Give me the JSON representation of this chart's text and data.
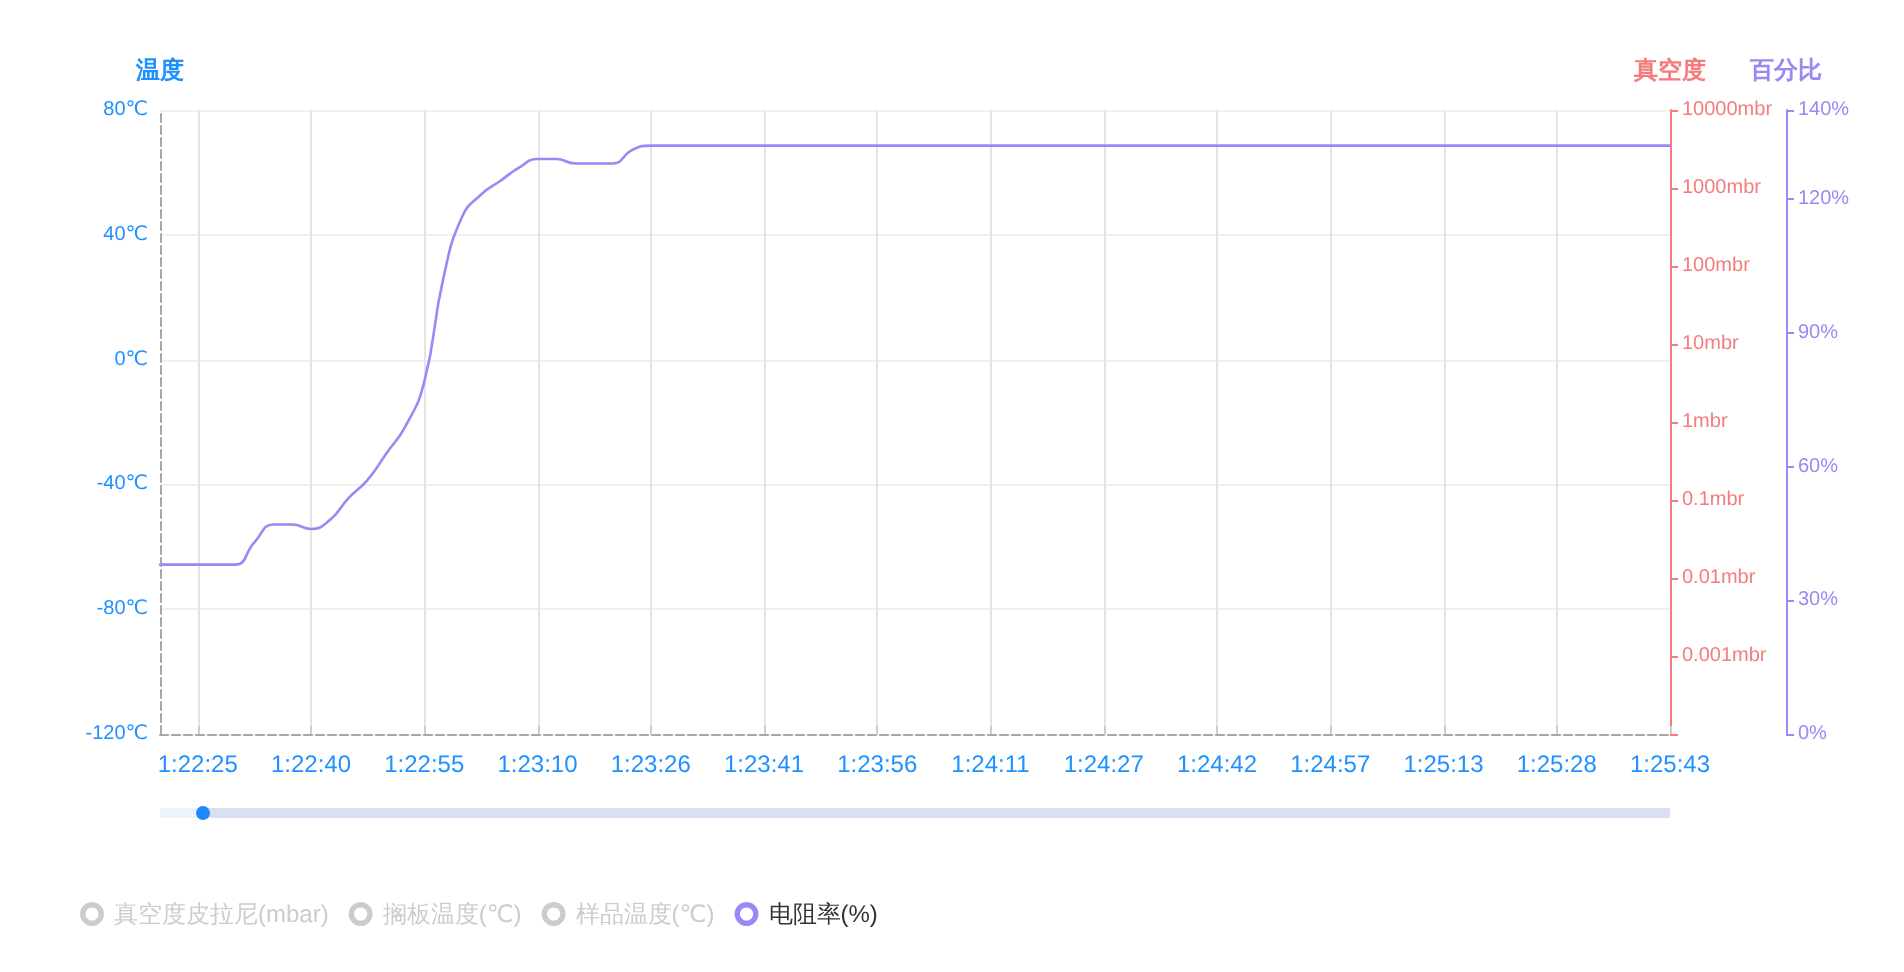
{
  "chart_data": {
    "type": "line",
    "ylabel": "温度",
    "y2label": "真空度",
    "y3label": "百分比",
    "categories": [
      null,
      null,
      "1:22:25",
      null,
      null,
      null,
      null,
      null,
      "1:22:40",
      null,
      null,
      null,
      null,
      null,
      "1:22:55",
      null,
      null,
      null,
      null,
      null,
      "1:23:10",
      null,
      null,
      null,
      null,
      null,
      "1:23:26",
      null,
      null,
      null,
      null,
      null,
      "1:23:41",
      null,
      null,
      null,
      null,
      null,
      "1:23:56",
      null,
      null,
      null,
      null,
      null,
      "1:24:11",
      null,
      null,
      null,
      null,
      null,
      "1:24:27",
      null,
      null,
      null,
      null,
      null,
      "1:24:42",
      null,
      null,
      null,
      null,
      null,
      "1:24:57",
      null,
      null,
      null,
      null,
      null,
      "1:25:13",
      null,
      null,
      null,
      null,
      null,
      "1:25:28",
      null,
      null,
      null,
      null,
      null,
      "1:25:43"
    ],
    "series": [
      {
        "name": "真空度皮拉尼(mbar)",
        "color": "#cccccc",
        "axis": "y2",
        "values": [
          null,
          null,
          null,
          null,
          null,
          null,
          null,
          null,
          null,
          null,
          null,
          null,
          null,
          null,
          null,
          null,
          null,
          null,
          null,
          null,
          null,
          null,
          null,
          null,
          null,
          null,
          null,
          null,
          null,
          null,
          null,
          null,
          null,
          null,
          null,
          null,
          null,
          null,
          null,
          null,
          null,
          null,
          null,
          null,
          null,
          null,
          null,
          null,
          null,
          null,
          null,
          null,
          null,
          null,
          null,
          null,
          null,
          null,
          null,
          null,
          null,
          null,
          null,
          null,
          null,
          null,
          null,
          null,
          null,
          null,
          null,
          null,
          null,
          null,
          null,
          null,
          null,
          null,
          null,
          null,
          null
        ]
      },
      {
        "name": "搁板温度(℃)",
        "color": "#cccccc",
        "axis": "y",
        "values": [
          null,
          null,
          null,
          null,
          null,
          null,
          null,
          null,
          null,
          null,
          null,
          null,
          null,
          null,
          null,
          null,
          null,
          null,
          null,
          null,
          null,
          null,
          null,
          null,
          null,
          null,
          null,
          null,
          null,
          null,
          null,
          null,
          null,
          null,
          null,
          null,
          null,
          null,
          null,
          null,
          null,
          null,
          null,
          null,
          null,
          null,
          null,
          null,
          null,
          null,
          null,
          null,
          null,
          null,
          null,
          null,
          null,
          null,
          null,
          null,
          null,
          null,
          null,
          null,
          null,
          null,
          null,
          null,
          null,
          null,
          null,
          null,
          null,
          null,
          null,
          null,
          null,
          null,
          null,
          null,
          null
        ]
      },
      {
        "name": "样品温度(℃)",
        "color": "#cccccc",
        "axis": "y",
        "values": [
          null,
          null,
          null,
          null,
          null,
          null,
          null,
          null,
          null,
          null,
          null,
          null,
          null,
          null,
          null,
          null,
          null,
          null,
          null,
          null,
          null,
          null,
          null,
          null,
          null,
          null,
          null,
          null,
          null,
          null,
          null,
          null,
          null,
          null,
          null,
          null,
          null,
          null,
          null,
          null,
          null,
          null,
          null,
          null,
          null,
          null,
          null,
          null,
          null,
          null,
          null,
          null,
          null,
          null,
          null,
          null,
          null,
          null,
          null,
          null,
          null,
          null,
          null,
          null,
          null,
          null,
          null,
          null,
          null,
          null,
          null,
          null,
          null,
          null,
          null,
          null,
          null,
          null,
          null,
          null,
          null
        ]
      },
      {
        "name": "电阻率(%)",
        "color": "#9d87f5",
        "axis": "y3",
        "values": [
          38,
          38,
          38,
          38,
          38,
          43,
          47,
          47,
          46,
          48,
          53,
          57,
          63,
          69,
          79,
          102,
          116,
          121,
          124,
          127,
          129,
          129,
          128,
          128,
          128,
          131,
          132,
          132,
          132,
          132,
          132,
          132,
          132,
          132,
          132,
          132,
          132,
          132,
          132,
          132,
          132,
          132,
          132,
          132,
          132,
          132,
          132,
          132,
          132,
          132,
          132,
          132,
          132,
          132,
          132,
          132,
          132,
          132,
          132,
          132,
          132,
          132,
          132,
          132,
          132,
          132,
          132,
          132,
          132,
          132,
          132,
          132,
          132,
          132,
          132,
          132,
          132,
          132,
          132,
          132,
          132
        ]
      }
    ],
    "ylim": [
      -120,
      80
    ],
    "yticks": [
      {
        "value": -120,
        "label": "-120℃"
      },
      {
        "value": -80,
        "label": "-80℃"
      },
      {
        "value": -40,
        "label": "-40℃"
      },
      {
        "value": 0,
        "label": "0℃"
      },
      {
        "value": 40,
        "label": "40℃"
      },
      {
        "value": 80,
        "label": "80℃"
      }
    ],
    "y2lim": [
      0.0001,
      10000
    ],
    "y2ticks": [
      {
        "value": 0.0001,
        "label": null
      },
      {
        "value": 0.001,
        "label": "0.001mbr"
      },
      {
        "value": 0.01,
        "label": "0.01mbr"
      },
      {
        "value": 0.1,
        "label": "0.1mbr"
      },
      {
        "value": 1,
        "label": "1mbr"
      },
      {
        "value": 10,
        "label": "10mbr"
      },
      {
        "value": 100,
        "label": "100mbr"
      },
      {
        "value": 1000,
        "label": "1000mbr"
      },
      {
        "value": 10000,
        "label": "10000mbr"
      }
    ],
    "y3lim": [
      0,
      140
    ],
    "y3ticks": [
      {
        "value": 0,
        "label": "0%"
      },
      {
        "value": 30,
        "label": "30%"
      },
      {
        "value": 60,
        "label": "60%"
      },
      {
        "value": 90,
        "label": "90%"
      },
      {
        "value": 120,
        "label": "120%"
      },
      {
        "value": 140,
        "label": "140%"
      }
    ],
    "log": "y2",
    "grid": true,
    "legend": "bottom left",
    "marker": "none"
  }
}
